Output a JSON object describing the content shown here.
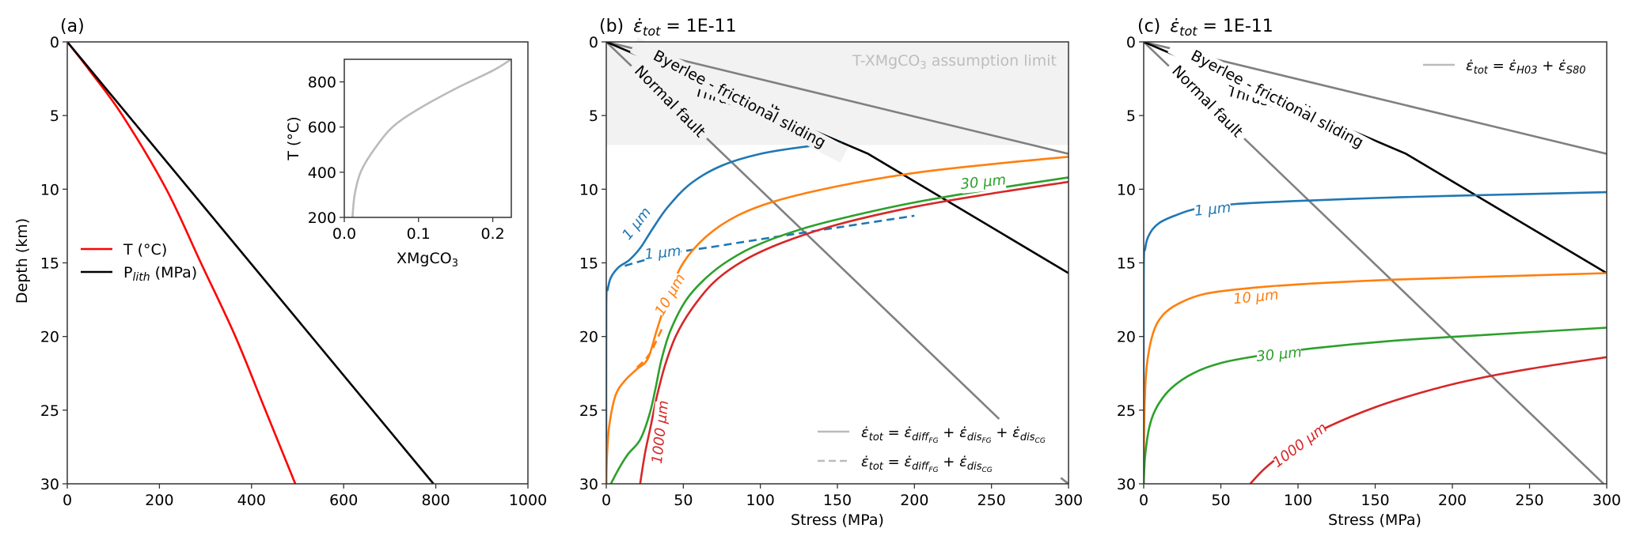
{
  "chart_data": [
    {
      "id": "a",
      "type": "line",
      "panel_label": "(a)",
      "title": "",
      "xlabel": "",
      "ylabel": "Depth (km)",
      "xlim": [
        0,
        1000
      ],
      "ylim": [
        30,
        0
      ],
      "xticks": [
        0,
        200,
        400,
        600,
        800,
        1000
      ],
      "yticks": [
        0,
        5,
        10,
        15,
        20,
        25,
        30
      ],
      "legend": {
        "position": "center-left",
        "entries": [
          "T (°C)",
          "P_lith (MPa)"
        ]
      },
      "series": [
        {
          "name": "T (°C)",
          "color": "#ff0000",
          "style": "solid",
          "points": [
            [
              0,
              0
            ],
            [
              50,
              2
            ],
            [
              120,
              5
            ],
            [
              215,
              10
            ],
            [
              290,
              15
            ],
            [
              365,
              20
            ],
            [
              430,
              25
            ],
            [
              495,
              30
            ]
          ]
        },
        {
          "name": "P_lith (MPa)",
          "color": "#000000",
          "style": "solid",
          "points": [
            [
              0,
              0
            ],
            [
              795,
              30
            ]
          ]
        }
      ],
      "inset": {
        "type": "line",
        "xlabel": "XMgCO3",
        "ylabel": "T (°C)",
        "xlim": [
          0,
          0.225
        ],
        "ylim": [
          200,
          900
        ],
        "xticks": [
          "0.0",
          "0.1",
          "0.2"
        ],
        "xtick_values": [
          0,
          0.1,
          0.2
        ],
        "yticks": [
          200,
          400,
          600,
          800
        ],
        "series": [
          {
            "name": "T-XMgCO3",
            "color": "#bbbbbb",
            "points": [
              [
                0.011,
                200
              ],
              [
                0.014,
                300
              ],
              [
                0.022,
                400
              ],
              [
                0.04,
                500
              ],
              [
                0.065,
                600
              ],
              [
                0.1,
                680
              ],
              [
                0.15,
                770
              ],
              [
                0.2,
                850
              ],
              [
                0.225,
                900
              ]
            ]
          }
        ]
      }
    },
    {
      "id": "b",
      "type": "line",
      "panel_label": "(b)",
      "title": "ε̇tot = 1E-11",
      "xlabel": "Stress (MPa)",
      "ylabel": "",
      "xlim": [
        0,
        300
      ],
      "ylim": [
        30,
        0
      ],
      "xticks": [
        0,
        50,
        100,
        150,
        200,
        250,
        300
      ],
      "yticks": [
        0,
        5,
        10,
        15,
        20,
        25,
        30
      ],
      "shaded_region": {
        "label": "T-XMgCO3 assumption limit",
        "depth_range": [
          0,
          7
        ],
        "color": "#f2f2f2"
      },
      "legend": {
        "position": "bottom-right",
        "entries": [
          {
            "style": "solid",
            "label": "ε̇tot = ε̇diff_FG + ε̇dis_FG + ε̇dis_CG"
          },
          {
            "style": "dashed",
            "label": "ε̇tot = ε̇diff_FG + ε̇dis_CG"
          }
        ]
      },
      "series": [
        {
          "name": "Thrust fault",
          "color": "#808080",
          "style": "solid",
          "points": [
            [
              0,
              0
            ],
            [
              300,
              7.6
            ]
          ]
        },
        {
          "name": "Normal fault",
          "color": "#808080",
          "style": "solid",
          "points": [
            [
              0,
              0
            ],
            [
              255,
              25.6
            ]
          ],
          "extra_segment": [
            [
              295,
              29.6
            ],
            [
              300,
              30
            ]
          ]
        },
        {
          "name": "Byerlee - frictional sliding",
          "color": "#000000",
          "style": "solid",
          "points": [
            [
              0,
              0
            ],
            [
              170,
              7.6
            ],
            [
              300,
              15.7
            ]
          ]
        },
        {
          "name": "1 µm",
          "color": "#1f77b4",
          "style": "solid",
          "points": [
            [
              0,
              30
            ],
            [
              0,
              18
            ],
            [
              1,
              16.8
            ],
            [
              3,
              16
            ],
            [
              8,
              15.3
            ],
            [
              15,
              14.8
            ],
            [
              22,
              14
            ],
            [
              30,
              12.7
            ],
            [
              40,
              11.2
            ],
            [
              55,
              9.6
            ],
            [
              75,
              8.4
            ],
            [
              100,
              7.6
            ],
            [
              130,
              7.1
            ],
            [
              153,
              6.9
            ]
          ]
        },
        {
          "name": "1 µm (dashed)",
          "color": "#1f77b4",
          "style": "dashed",
          "points": [
            [
              12,
              15.2
            ],
            [
              40,
              14.4
            ],
            [
              70,
              13.9
            ],
            [
              100,
              13.4
            ],
            [
              150,
              12.6
            ],
            [
              200,
              11.8
            ]
          ]
        },
        {
          "name": "10 µm",
          "color": "#ff7f0e",
          "style": "solid",
          "points": [
            [
              0,
              30
            ],
            [
              0.5,
              28
            ],
            [
              2,
              26
            ],
            [
              6,
              24
            ],
            [
              12,
              23
            ],
            [
              20,
              22.2
            ],
            [
              27,
              21.5
            ],
            [
              33,
              19.5
            ],
            [
              40,
              17.3
            ],
            [
              50,
              15
            ],
            [
              65,
              13.2
            ],
            [
              85,
              11.8
            ],
            [
              110,
              10.8
            ],
            [
              150,
              9.8
            ],
            [
              200,
              8.9
            ],
            [
              250,
              8.3
            ],
            [
              300,
              7.8
            ]
          ]
        },
        {
          "name": "10 µm (dashed)",
          "color": "#ff7f0e",
          "style": "dashed",
          "points": [
            [
              20,
              22.1
            ],
            [
              28,
              21.2
            ],
            [
              36,
              19.5
            ]
          ]
        },
        {
          "name": "30 µm",
          "color": "#2ca02c",
          "style": "solid",
          "points": [
            [
              3,
              30
            ],
            [
              8,
              29
            ],
            [
              14,
              28
            ],
            [
              22,
              27
            ],
            [
              28,
              25.3
            ],
            [
              32,
              23.5
            ],
            [
              36,
              21.5
            ],
            [
              42,
              19.5
            ],
            [
              52,
              17.5
            ],
            [
              65,
              16
            ],
            [
              80,
              14.8
            ],
            [
              100,
              13.7
            ],
            [
              130,
              12.6
            ],
            [
              160,
              11.8
            ],
            [
              200,
              10.9
            ],
            [
              250,
              10
            ],
            [
              300,
              9.2
            ]
          ]
        },
        {
          "name": "1000 µm",
          "color": "#d62728",
          "style": "solid",
          "points": [
            [
              22,
              30
            ],
            [
              25,
              28
            ],
            [
              29,
              26
            ],
            [
              33,
              24
            ],
            [
              38,
              22
            ],
            [
              45,
              20
            ],
            [
              55,
              18.2
            ],
            [
              70,
              16.3
            ],
            [
              90,
              14.8
            ],
            [
              115,
              13.6
            ],
            [
              150,
              12.4
            ],
            [
              200,
              11.2
            ],
            [
              250,
              10.3
            ],
            [
              300,
              9.5
            ]
          ]
        }
      ],
      "annotations": [
        "Thrust fault",
        "Byerlee - frictional sliding",
        "Normal fault",
        "1 µm",
        "1 µm",
        "10 µm",
        "30 µm",
        "1000 µm",
        "T-XMgCO3 assumption limit"
      ]
    },
    {
      "id": "c",
      "type": "line",
      "panel_label": "(c)",
      "title": "ε̇tot = 1E-11",
      "xlabel": "Stress (MPa)",
      "ylabel": "",
      "xlim": [
        0,
        300
      ],
      "ylim": [
        30,
        0
      ],
      "xticks": [
        0,
        50,
        100,
        150,
        200,
        250,
        300
      ],
      "yticks": [
        0,
        5,
        10,
        15,
        20,
        25,
        30
      ],
      "legend": {
        "position": "top-right",
        "entries": [
          {
            "style": "solid",
            "label": "ε̇tot = ε̇H03 + ε̇S80"
          }
        ]
      },
      "series": [
        {
          "name": "Thrust fault",
          "color": "#808080",
          "style": "solid",
          "points": [
            [
              0,
              0
            ],
            [
              300,
              7.6
            ]
          ]
        },
        {
          "name": "Normal fault",
          "color": "#808080",
          "style": "solid",
          "points": [
            [
              0,
              0
            ],
            [
              298,
              30
            ]
          ]
        },
        {
          "name": "Byerlee - frictional sliding",
          "color": "#000000",
          "style": "solid",
          "points": [
            [
              0,
              0
            ],
            [
              170,
              7.6
            ],
            [
              300,
              15.7
            ]
          ]
        },
        {
          "name": "1 µm",
          "color": "#1f77b4",
          "style": "solid",
          "points": [
            [
              0,
              30
            ],
            [
              0,
              16
            ],
            [
              1,
              14
            ],
            [
              4,
              13
            ],
            [
              10,
              12.3
            ],
            [
              20,
              11.8
            ],
            [
              35,
              11.3
            ],
            [
              60,
              11
            ],
            [
              100,
              10.8
            ],
            [
              150,
              10.6
            ],
            [
              200,
              10.45
            ],
            [
              300,
              10.2
            ]
          ]
        },
        {
          "name": "10 µm",
          "color": "#ff7f0e",
          "style": "solid",
          "points": [
            [
              0,
              30
            ],
            [
              0.5,
              25
            ],
            [
              2,
              22
            ],
            [
              6,
              19.8
            ],
            [
              12,
              18.6
            ],
            [
              22,
              17.8
            ],
            [
              40,
              17.1
            ],
            [
              70,
              16.7
            ],
            [
              110,
              16.4
            ],
            [
              160,
              16.15
            ],
            [
              220,
              15.95
            ],
            [
              300,
              15.7
            ]
          ]
        },
        {
          "name": "30 µm",
          "color": "#2ca02c",
          "style": "solid",
          "points": [
            [
              0,
              30
            ],
            [
              1,
              28
            ],
            [
              4,
              26
            ],
            [
              9,
              24.7
            ],
            [
              18,
              23.5
            ],
            [
              32,
              22.5
            ],
            [
              50,
              21.8
            ],
            [
              75,
              21.3
            ],
            [
              110,
              20.8
            ],
            [
              160,
              20.3
            ],
            [
              220,
              19.9
            ],
            [
              300,
              19.4
            ]
          ]
        },
        {
          "name": "1000 µm",
          "color": "#d62728",
          "style": "solid",
          "points": [
            [
              69,
              30
            ],
            [
              78,
              29
            ],
            [
              90,
              28
            ],
            [
              105,
              27
            ],
            [
              120,
              26.1
            ],
            [
              150,
              24.8
            ],
            [
              180,
              23.8
            ],
            [
              210,
              23
            ],
            [
              250,
              22.2
            ],
            [
              300,
              21.4
            ]
          ]
        }
      ],
      "annotations": [
        "Thrust fault",
        "Byerlee - frictional sliding",
        "Normal fault",
        "1 µm",
        "10 µm",
        "30 µm",
        "1000 µm"
      ]
    }
  ],
  "text": {
    "a_label": "(a)",
    "b_label": "(b)",
    "c_label": "(c)",
    "eps_title_lhs": "ε̇",
    "eps_title_sub": "tot",
    "eps_title_rhs": " = 1E-11",
    "depth_label": "Depth (km)",
    "stress_label": "Stress (MPa)",
    "legend_T": "T (°C)",
    "legend_P_main": "P",
    "legend_P_sub": "lith",
    "legend_P_rest": " (MPa)",
    "inset_xlabel_main": "XMgCO",
    "inset_xlabel_sub": "3",
    "inset_ylabel": "T (°C)",
    "shade_main": "T-XMgCO",
    "shade_sub": "3",
    "shade_rest": " assumption limit",
    "thrust": "Thrust fault",
    "normal": "Normal fault",
    "byerlee": "Byerlee - frictional sliding",
    "lbl_1um": "1 µm",
    "lbl_10um": "10 µm",
    "lbl_30um": "30 µm",
    "lbl_1000um": "1000 µm",
    "b_leg1": "ε̇tot = ε̇diffFG + ε̇disFG + ε̇disCG",
    "b_leg2": "ε̇tot = ε̇diffFG + ε̇disCG",
    "c_leg1": "ε̇tot = ε̇H03 + ε̇S80"
  }
}
